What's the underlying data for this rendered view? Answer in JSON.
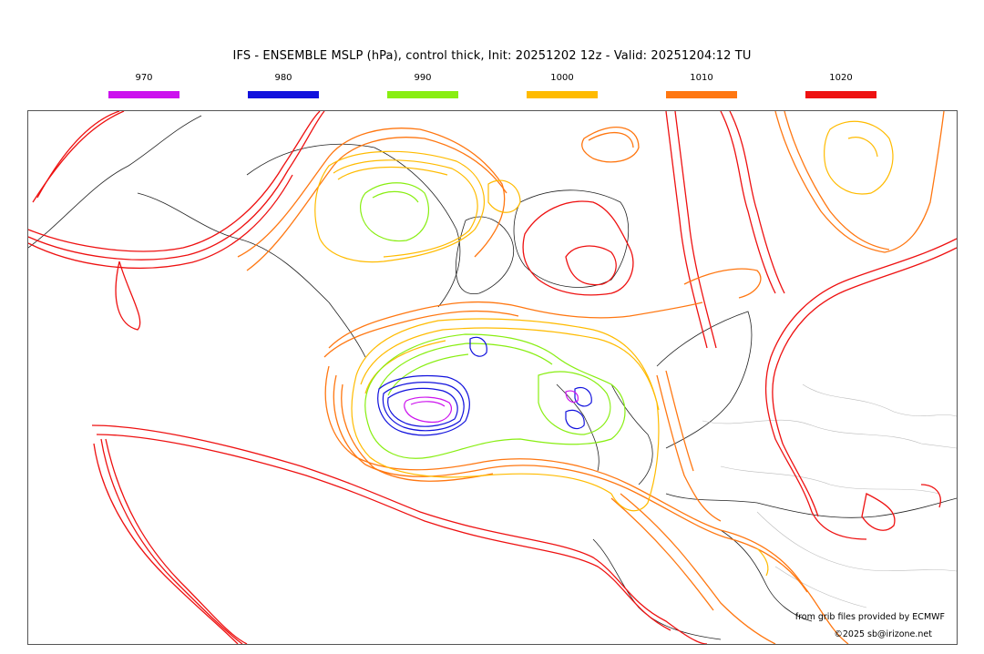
{
  "title": "IFS - ENSEMBLE MSLP (hPa), control thick, Init: 20251202 12z - Valid: 20251204:12 TU",
  "legend": [
    {
      "label": "970",
      "color": "#cc11ee"
    },
    {
      "label": "980",
      "color": "#1111dd"
    },
    {
      "label": "990",
      "color": "#88ee11"
    },
    {
      "label": "1000",
      "color": "#ffbb00"
    },
    {
      "label": "1010",
      "color": "#ff7711"
    },
    {
      "label": "1020",
      "color": "#ee1111"
    }
  ],
  "credits": {
    "source": "from grib files provided by ECMWF",
    "copyright": "©2025 sb@irizone.net"
  }
}
